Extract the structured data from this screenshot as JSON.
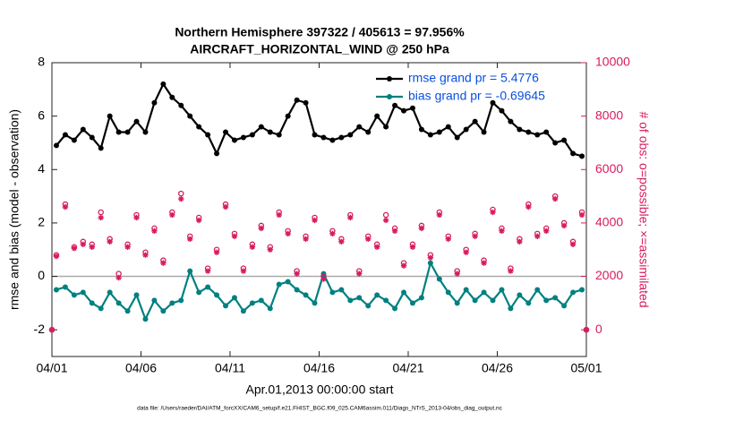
{
  "chart_data": {
    "type": "line",
    "title": "Northern Hemisphere 397322 / 405613 = 97.956%",
    "subtitle": "AIRCRAFT_HORIZONTAL_WIND @ 250 hPa",
    "xlabel": "Apr.01,2013 00:00:00 start",
    "ylabel": "rmse and bias (model - observation)",
    "y2label": "# of obs: o=possible; ×=assimilated",
    "y2_color": "#d81b60",
    "footnote": "data file: /Users/raeder/DAI/ATM_forcXX/CAM6_setup/f.e21.FHIST_BGC.f09_025.CAM6assim.011/Diags_NTrS_2013-04/obs_diag_output.nc",
    "legend": "upper right",
    "legend_text_color": "#0b4fe0",
    "xlim": [
      0,
      30
    ],
    "xticks": [
      {
        "value": 0,
        "label": "04/01"
      },
      {
        "value": 5,
        "label": "04/06"
      },
      {
        "value": 10,
        "label": "04/11"
      },
      {
        "value": 15,
        "label": "04/16"
      },
      {
        "value": 20,
        "label": "04/21"
      },
      {
        "value": 25,
        "label": "04/26"
      },
      {
        "value": 30,
        "label": "05/01"
      }
    ],
    "ylim": [
      -3,
      8
    ],
    "yticks": [
      -2,
      0,
      2,
      4,
      6,
      8
    ],
    "y2lim": [
      -1000,
      10000
    ],
    "y2ticks": [
      0,
      2000,
      4000,
      6000,
      8000,
      10000
    ],
    "x": [
      0.25,
      0.75,
      1.25,
      1.75,
      2.25,
      2.75,
      3.25,
      3.75,
      4.25,
      4.75,
      5.25,
      5.75,
      6.25,
      6.75,
      7.25,
      7.75,
      8.25,
      8.75,
      9.25,
      9.75,
      10.25,
      10.75,
      11.25,
      11.75,
      12.25,
      12.75,
      13.25,
      13.75,
      14.25,
      14.75,
      15.25,
      15.75,
      16.25,
      16.75,
      17.25,
      17.75,
      18.25,
      18.75,
      19.25,
      19.75,
      20.25,
      20.75,
      21.25,
      21.75,
      22.25,
      22.75,
      23.25,
      23.75,
      24.25,
      24.75,
      25.25,
      25.75,
      26.25,
      26.75,
      27.25,
      27.75,
      28.25,
      28.75,
      29.25,
      29.75
    ],
    "series": [
      {
        "name": "rmse grand pr = 5.4776",
        "color": "#000000",
        "marker": "dot",
        "values": [
          4.9,
          5.3,
          5.1,
          5.5,
          5.2,
          4.8,
          6.0,
          5.4,
          5.4,
          5.8,
          5.4,
          6.5,
          7.2,
          6.7,
          6.4,
          6.0,
          5.6,
          5.3,
          4.6,
          5.4,
          5.1,
          5.2,
          5.3,
          5.6,
          5.4,
          5.3,
          6.0,
          6.6,
          6.5,
          5.3,
          5.2,
          5.1,
          5.2,
          5.3,
          5.6,
          5.4,
          6.0,
          5.6,
          6.4,
          6.2,
          6.3,
          5.5,
          5.3,
          5.4,
          5.6,
          5.2,
          5.5,
          5.8,
          5.4,
          6.5,
          6.2,
          5.8,
          5.5,
          5.4,
          5.3,
          5.4,
          5.0,
          5.1,
          4.6,
          4.5
        ]
      },
      {
        "name": "bias grand pr = -0.69645",
        "color": "#008080",
        "marker": "dot",
        "values": [
          -0.5,
          -0.4,
          -0.7,
          -0.6,
          -1.0,
          -1.2,
          -0.6,
          -1.0,
          -1.3,
          -0.7,
          -1.6,
          -0.9,
          -1.3,
          -1.0,
          -0.9,
          0.2,
          -0.6,
          -0.4,
          -0.7,
          -1.1,
          -0.8,
          -1.3,
          -1.0,
          -0.9,
          -1.2,
          -0.3,
          -0.2,
          -0.5,
          -0.7,
          -1.0,
          0.1,
          -0.6,
          -0.5,
          -0.9,
          -0.8,
          -1.1,
          -0.7,
          -0.9,
          -1.2,
          -0.6,
          -1.0,
          -0.8,
          0.5,
          -0.1,
          -0.6,
          -1.0,
          -0.5,
          -0.9,
          -0.6,
          -0.9,
          -0.5,
          -1.2,
          -0.7,
          -1.0,
          -0.5,
          -0.9,
          -0.8,
          -1.1,
          -0.6,
          -0.5
        ]
      },
      {
        "color": "#d81b60",
        "marker": "circle",
        "axis": "y2",
        "x": [
          0,
          0.25,
          0.75,
          1.25,
          1.75,
          2.25,
          2.75,
          3.25,
          3.75,
          4.25,
          4.75,
          5.25,
          5.75,
          6.25,
          6.75,
          7.25,
          7.75,
          8.25,
          8.75,
          9.25,
          9.75,
          10.25,
          10.75,
          11.25,
          11.75,
          12.25,
          12.75,
          13.25,
          13.75,
          14.25,
          14.75,
          15.25,
          15.75,
          16.25,
          16.75,
          17.25,
          17.75,
          18.25,
          18.75,
          19.25,
          19.75,
          20.25,
          20.75,
          21.25,
          21.75,
          22.25,
          22.75,
          23.25,
          23.75,
          24.25,
          24.75,
          25.25,
          25.75,
          26.25,
          26.75,
          27.25,
          27.75,
          28.25,
          28.75,
          29.25,
          29.75,
          30
        ],
        "values": [
          0,
          2800,
          4700,
          3100,
          3300,
          3200,
          4400,
          3400,
          2100,
          3200,
          4300,
          2900,
          3800,
          2600,
          4400,
          5100,
          3500,
          4200,
          2300,
          3000,
          4700,
          3600,
          2300,
          3200,
          3900,
          3100,
          4400,
          3700,
          2200,
          3500,
          4200,
          2000,
          3700,
          3400,
          4300,
          2200,
          3500,
          3200,
          4300,
          3800,
          2500,
          3200,
          3900,
          2800,
          4400,
          3500,
          2200,
          3000,
          3600,
          2600,
          4500,
          3800,
          2300,
          3400,
          4700,
          3600,
          3800,
          5000,
          4000,
          3300,
          4400,
          0
        ]
      },
      {
        "color": "#d81b60",
        "marker": "asterisk",
        "axis": "y2",
        "x": [
          0,
          0.25,
          0.75,
          1.25,
          1.75,
          2.25,
          2.75,
          3.25,
          3.75,
          4.25,
          4.75,
          5.25,
          5.75,
          6.25,
          6.75,
          7.25,
          7.75,
          8.25,
          8.75,
          9.25,
          9.75,
          10.25,
          10.75,
          11.25,
          11.75,
          12.25,
          12.75,
          13.25,
          13.75,
          14.25,
          14.75,
          15.25,
          15.75,
          16.25,
          16.75,
          17.25,
          17.75,
          18.25,
          18.75,
          19.25,
          19.75,
          20.25,
          20.75,
          21.25,
          21.75,
          22.25,
          22.75,
          23.25,
          23.75,
          24.25,
          24.75,
          25.25,
          25.75,
          26.25,
          26.75,
          27.25,
          27.75,
          28.25,
          28.75,
          29.25,
          29.75,
          30
        ],
        "values": [
          0,
          2750,
          4600,
          3050,
          3200,
          3100,
          4200,
          3300,
          1950,
          3100,
          4200,
          2800,
          3700,
          2500,
          4300,
          4900,
          3400,
          4100,
          2200,
          2900,
          4600,
          3500,
          2200,
          3100,
          3800,
          3000,
          4300,
          3600,
          2100,
          3400,
          4100,
          1900,
          3600,
          3300,
          4200,
          2100,
          3400,
          3100,
          4100,
          3700,
          2400,
          3100,
          3800,
          2700,
          4300,
          3400,
          2100,
          2900,
          3500,
          2500,
          4400,
          3700,
          2200,
          3300,
          4600,
          3500,
          3700,
          4900,
          3900,
          3200,
          4300,
          0
        ]
      }
    ]
  }
}
